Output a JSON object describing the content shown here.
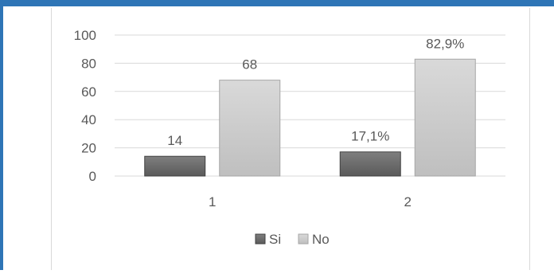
{
  "colors": {
    "frame": "#2e75b6",
    "si_fill_top": "#7f7f7f",
    "si_fill_bottom": "#5a5a5a",
    "no_fill_top": "#d9d9d9",
    "no_fill_bottom": "#bfbfbf",
    "gridline": "#d9d9d9",
    "text": "#595959"
  },
  "chart_data": {
    "type": "bar",
    "categories": [
      "1",
      "2"
    ],
    "series": [
      {
        "name": "Si",
        "values": [
          14,
          17.1
        ],
        "labels": [
          "14",
          "17,1%"
        ]
      },
      {
        "name": "No",
        "values": [
          68,
          82.9
        ],
        "labels": [
          "68",
          "82,9%"
        ]
      }
    ],
    "title": "",
    "xlabel": "",
    "ylabel": "",
    "ylim": [
      0,
      100
    ],
    "yticks": [
      "0",
      "20",
      "40",
      "60",
      "80",
      "100"
    ],
    "grid": true,
    "legend": "bottom"
  }
}
